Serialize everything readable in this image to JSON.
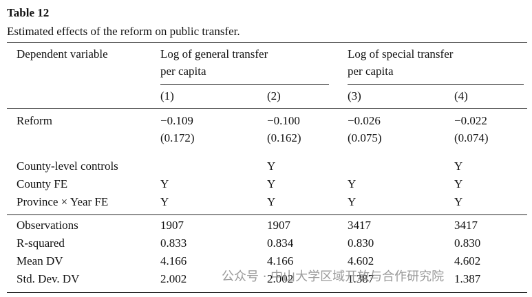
{
  "title": "Table 12",
  "caption": "Estimated effects of the reform on public transfer.",
  "table": {
    "header": {
      "dependent_variable": "Dependent variable",
      "groups": [
        {
          "lines": [
            "Log of general transfer",
            "per capita"
          ]
        },
        {
          "lines": [
            "Log of special transfer",
            "per capita"
          ]
        }
      ],
      "columns": [
        "(1)",
        "(2)",
        "(3)",
        "(4)"
      ]
    },
    "coefficient_rows": [
      {
        "label": "Reform",
        "estimates": [
          "−0.109",
          "−0.100",
          "−0.026",
          "−0.022"
        ],
        "standard_errors": [
          "(0.172)",
          "(0.162)",
          "(0.075)",
          "(0.074)"
        ]
      }
    ],
    "control_rows": [
      {
        "label": "County-level controls",
        "cells": [
          null,
          "Y",
          null,
          "Y"
        ]
      },
      {
        "label": "County FE",
        "cells": [
          "Y",
          "Y",
          "Y",
          "Y"
        ]
      },
      {
        "label": "Province × Year FE",
        "cells": [
          "Y",
          "Y",
          "Y",
          "Y"
        ]
      }
    ],
    "stat_rows": [
      {
        "label": "Observations",
        "cells": [
          "1907",
          "1907",
          "3417",
          "3417"
        ]
      },
      {
        "label": "R-squared",
        "cells": [
          "0.833",
          "0.834",
          "0.830",
          "0.830"
        ]
      },
      {
        "label": "Mean DV",
        "cells": [
          "4.166",
          "4.166",
          "4.602",
          "4.602"
        ]
      },
      {
        "label": "Std. Dev. DV",
        "cells": [
          "2.002",
          "2.002",
          "1.387",
          "1.387"
        ]
      }
    ]
  },
  "watermark": "公众号 · 中山大学区域开放与合作研究院"
}
